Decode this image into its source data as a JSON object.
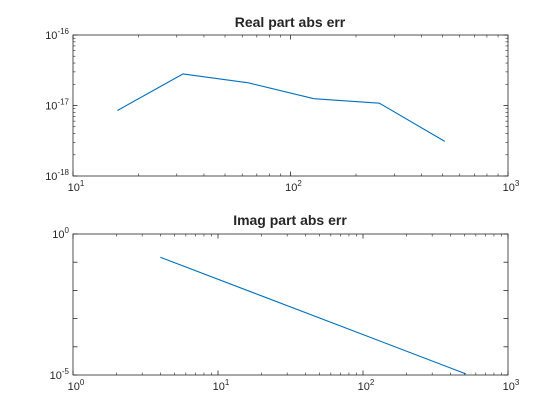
{
  "chart_data": [
    {
      "type": "line",
      "title": "Real part abs err",
      "xscale": "log",
      "yscale": "log",
      "xlim": [
        10,
        1000
      ],
      "ylim": [
        1e-18,
        1e-16
      ],
      "xticks": [
        {
          "base": "10",
          "exp": "1"
        },
        {
          "base": "10",
          "exp": "2"
        },
        {
          "base": "10",
          "exp": "3"
        }
      ],
      "yticks": [
        {
          "base": "10",
          "exp": "-18"
        },
        {
          "base": "10",
          "exp": "-17"
        },
        {
          "base": "10",
          "exp": "-16"
        }
      ],
      "grid": false,
      "series": [
        {
          "color": "#0072BD",
          "x": [
            16,
            32,
            64,
            128,
            256,
            512
          ],
          "y": [
            8.5e-18,
            2.8e-17,
            2.1e-17,
            1.25e-17,
            1.08e-17,
            3.1e-18
          ]
        }
      ]
    },
    {
      "type": "line",
      "title": "Imag part abs err",
      "xscale": "log",
      "yscale": "log",
      "xlim": [
        1,
        1000
      ],
      "ylim": [
        1e-05,
        1
      ],
      "xticks": [
        {
          "base": "10",
          "exp": "0"
        },
        {
          "base": "10",
          "exp": "1"
        },
        {
          "base": "10",
          "exp": "2"
        },
        {
          "base": "10",
          "exp": "3"
        }
      ],
      "yticks": [
        {
          "base": "10",
          "exp": "-5"
        },
        {
          "base": "10",
          "exp": "0"
        }
      ],
      "grid": false,
      "series": [
        {
          "color": "#0072BD",
          "x": [
            4,
            512
          ],
          "y": [
            0.15,
            1.1e-05
          ]
        }
      ]
    }
  ]
}
